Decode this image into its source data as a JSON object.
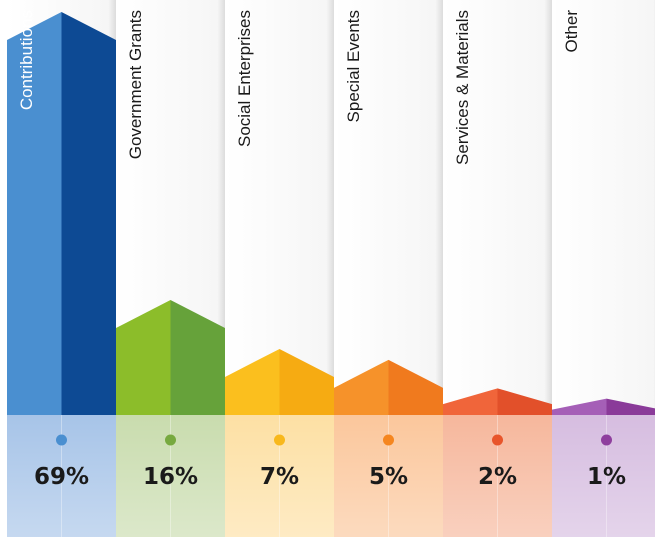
{
  "chart_data": {
    "type": "bar",
    "categories": [
      "Contributions",
      "Government Grants",
      "Social Enterprises",
      "Special Events",
      "Services & Materials",
      "Other"
    ],
    "values": [
      69,
      16,
      7,
      5,
      2,
      1
    ],
    "value_labels": [
      "69%",
      "16%",
      "7%",
      "5%",
      "2%",
      "1%"
    ],
    "unit": "%",
    "title": "",
    "xlabel": "",
    "ylabel": "",
    "ylim": [
      0,
      69
    ],
    "grid": false,
    "legend": "none",
    "colors": [
      {
        "light": "#4a8fd0",
        "dark": "#0d4a94",
        "dot": "#4a8fd0",
        "band": "#a7c4e8"
      },
      {
        "light": "#8cbd2a",
        "dark": "#66a23a",
        "dot": "#77a93f",
        "band": "#c9dcae"
      },
      {
        "light": "#fbbf1e",
        "dark": "#f6ab12",
        "dot": "#f8b81c",
        "band": "#fde0a4"
      },
      {
        "light": "#f6922a",
        "dark": "#f07a1e",
        "dot": "#f5861f",
        "band": "#fbc79c"
      },
      {
        "light": "#f0653a",
        "dark": "#e2502a",
        "dot": "#e8552b",
        "band": "#f6b79c"
      },
      {
        "light": "#a55fb7",
        "dark": "#8a3a99",
        "dot": "#8f3f9e",
        "band": "#d6bde0"
      }
    ]
  }
}
